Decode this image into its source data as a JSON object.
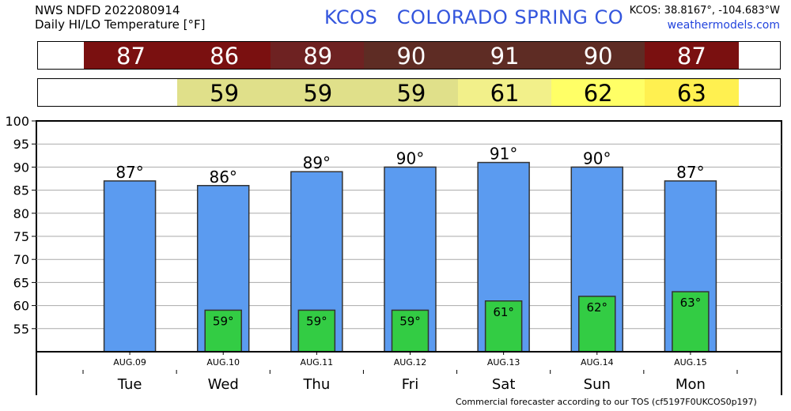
{
  "header": {
    "line1": "NWS NDFD 2022080914",
    "line2": "Daily HI/LO Temperature [°F]",
    "station": "KCOS   COLORADO SPRING CO",
    "coords": "KCOS: 38.8167°, -104.683°W",
    "site": "weathermodels.com"
  },
  "hi_strip": [
    {
      "value": "87",
      "color": "#7a1010"
    },
    {
      "value": "86",
      "color": "#7a1010"
    },
    {
      "value": "89",
      "color": "#6e2222"
    },
    {
      "value": "90",
      "color": "#5e2c24"
    },
    {
      "value": "91",
      "color": "#5e2c24"
    },
    {
      "value": "90",
      "color": "#5e2c24"
    },
    {
      "value": "87",
      "color": "#7a1010"
    }
  ],
  "lo_strip": [
    {
      "value": "",
      "color": "#ffffff"
    },
    {
      "value": "59",
      "color": "#e0e08a"
    },
    {
      "value": "59",
      "color": "#e0e08a"
    },
    {
      "value": "59",
      "color": "#e0e08a"
    },
    {
      "value": "61",
      "color": "#f2f08a"
    },
    {
      "value": "62",
      "color": "#ffff66"
    },
    {
      "value": "63",
      "color": "#fff050"
    }
  ],
  "chart_data": {
    "type": "bar",
    "categories": [
      "Tue",
      "Wed",
      "Thu",
      "Fri",
      "Sat",
      "Sun",
      "Mon"
    ],
    "dates": [
      "AUG.09",
      "AUG.10",
      "AUG.11",
      "AUG.12",
      "AUG.13",
      "AUG.14",
      "AUG.15"
    ],
    "series": [
      {
        "values": [
          87,
          86,
          89,
          90,
          91,
          90,
          87
        ]
      },
      {
        "values": [
          null,
          59,
          59,
          59,
          61,
          62,
          63
        ]
      }
    ],
    "hi_labels": [
      "87°",
      "86°",
      "89°",
      "90°",
      "91°",
      "90°",
      "87°"
    ],
    "lo_labels": [
      "",
      "59°",
      "59°",
      "59°",
      "61°",
      "62°",
      "63°"
    ],
    "ylim": [
      50,
      100
    ],
    "yticks": [
      55,
      60,
      65,
      70,
      75,
      80,
      85,
      90,
      95,
      100
    ],
    "grid": true,
    "colors": {
      "hi": "#5b9bf0",
      "lo": "#33cc44",
      "grid": "#aaaaaa"
    }
  },
  "footer": "Commercial forecaster according to our TOS (cf5197F0UKCOS0p197)"
}
